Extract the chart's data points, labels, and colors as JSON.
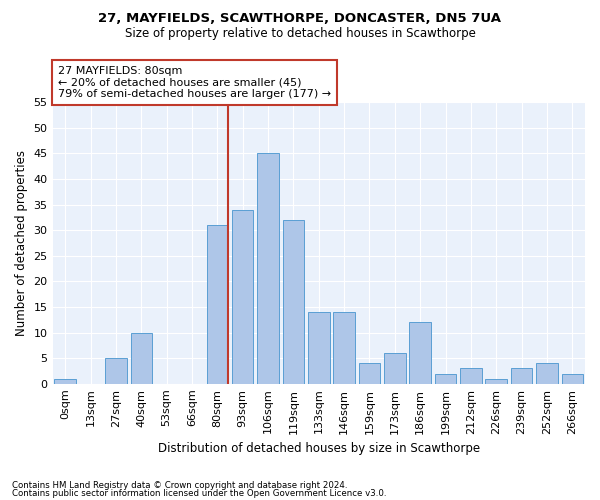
{
  "title1": "27, MAYFIELDS, SCAWTHORPE, DONCASTER, DN5 7UA",
  "title2": "Size of property relative to detached houses in Scawthorpe",
  "xlabel": "Distribution of detached houses by size in Scawthorpe",
  "ylabel": "Number of detached properties",
  "bar_labels": [
    "0sqm",
    "13sqm",
    "27sqm",
    "40sqm",
    "53sqm",
    "66sqm",
    "80sqm",
    "93sqm",
    "106sqm",
    "119sqm",
    "133sqm",
    "146sqm",
    "159sqm",
    "173sqm",
    "186sqm",
    "199sqm",
    "212sqm",
    "226sqm",
    "239sqm",
    "252sqm",
    "266sqm"
  ],
  "bar_values": [
    1,
    0,
    5,
    10,
    0,
    0,
    31,
    34,
    45,
    32,
    14,
    14,
    4,
    6,
    12,
    2,
    3,
    1,
    3,
    4,
    2
  ],
  "bar_color": "#aec6e8",
  "bar_edgecolor": "#5a9fd4",
  "marker_index": 6,
  "marker_color": "#c0392b",
  "annotation_title": "27 MAYFIELDS: 80sqm",
  "annotation_line1": "← 20% of detached houses are smaller (45)",
  "annotation_line2": "79% of semi-detached houses are larger (177) →",
  "annotation_box_color": "#ffffff",
  "annotation_box_edge": "#c0392b",
  "ylim": [
    0,
    55
  ],
  "yticks": [
    0,
    5,
    10,
    15,
    20,
    25,
    30,
    35,
    40,
    45,
    50,
    55
  ],
  "footnote1": "Contains HM Land Registry data © Crown copyright and database right 2024.",
  "footnote2": "Contains public sector information licensed under the Open Government Licence v3.0.",
  "bg_color": "#eaf1fb",
  "fig_bg_color": "#ffffff"
}
